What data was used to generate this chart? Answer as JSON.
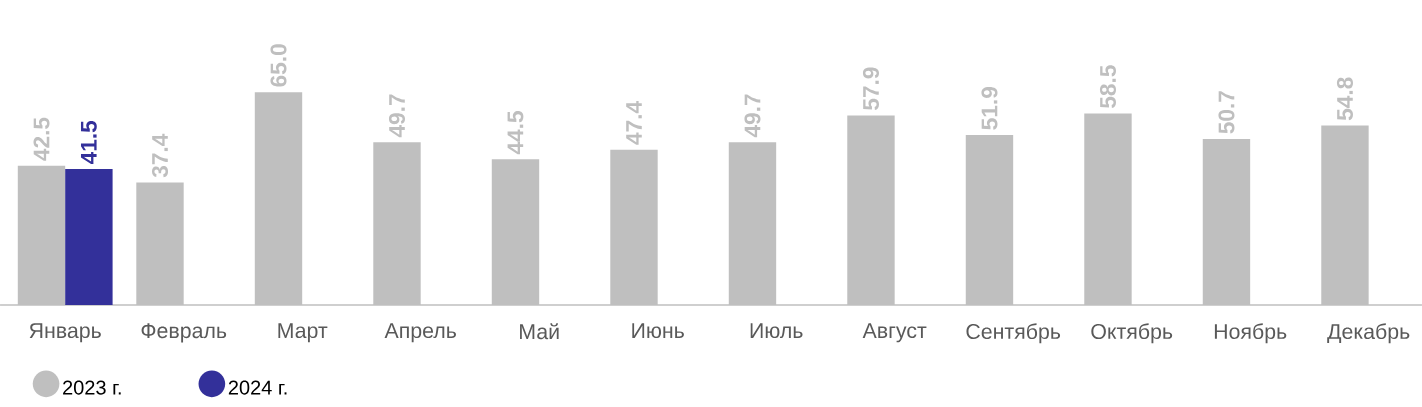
{
  "chart_data": {
    "type": "bar",
    "categories": [
      "Январь",
      "Февраль",
      "Март",
      "Апрель",
      "Май",
      "Июнь",
      "Июль",
      "Август",
      "Сентябрь",
      "Октябрь",
      "Ноябрь",
      "Декабрь"
    ],
    "series": [
      {
        "name": "2023 г.",
        "color": "#bfbfbf",
        "values": [
          42.5,
          37.4,
          65.0,
          49.7,
          44.5,
          47.4,
          49.7,
          57.9,
          51.9,
          58.5,
          50.7,
          54.8
        ],
        "value_labels": [
          "42.5",
          "37.4",
          "65.0",
          "49.7",
          "44.5",
          "47.4",
          "49.7",
          "57.9",
          "51.9",
          "58.5",
          "50.7",
          "54.8"
        ]
      },
      {
        "name": "2024 г.",
        "color": "#33309a",
        "values": [
          41.5,
          null,
          null,
          null,
          null,
          null,
          null,
          null,
          null,
          null,
          null,
          null
        ],
        "value_labels": [
          "41.5",
          null,
          null,
          null,
          null,
          null,
          null,
          null,
          null,
          null,
          null,
          null
        ]
      }
    ],
    "legend": "bottom left",
    "marker": "circle"
  }
}
